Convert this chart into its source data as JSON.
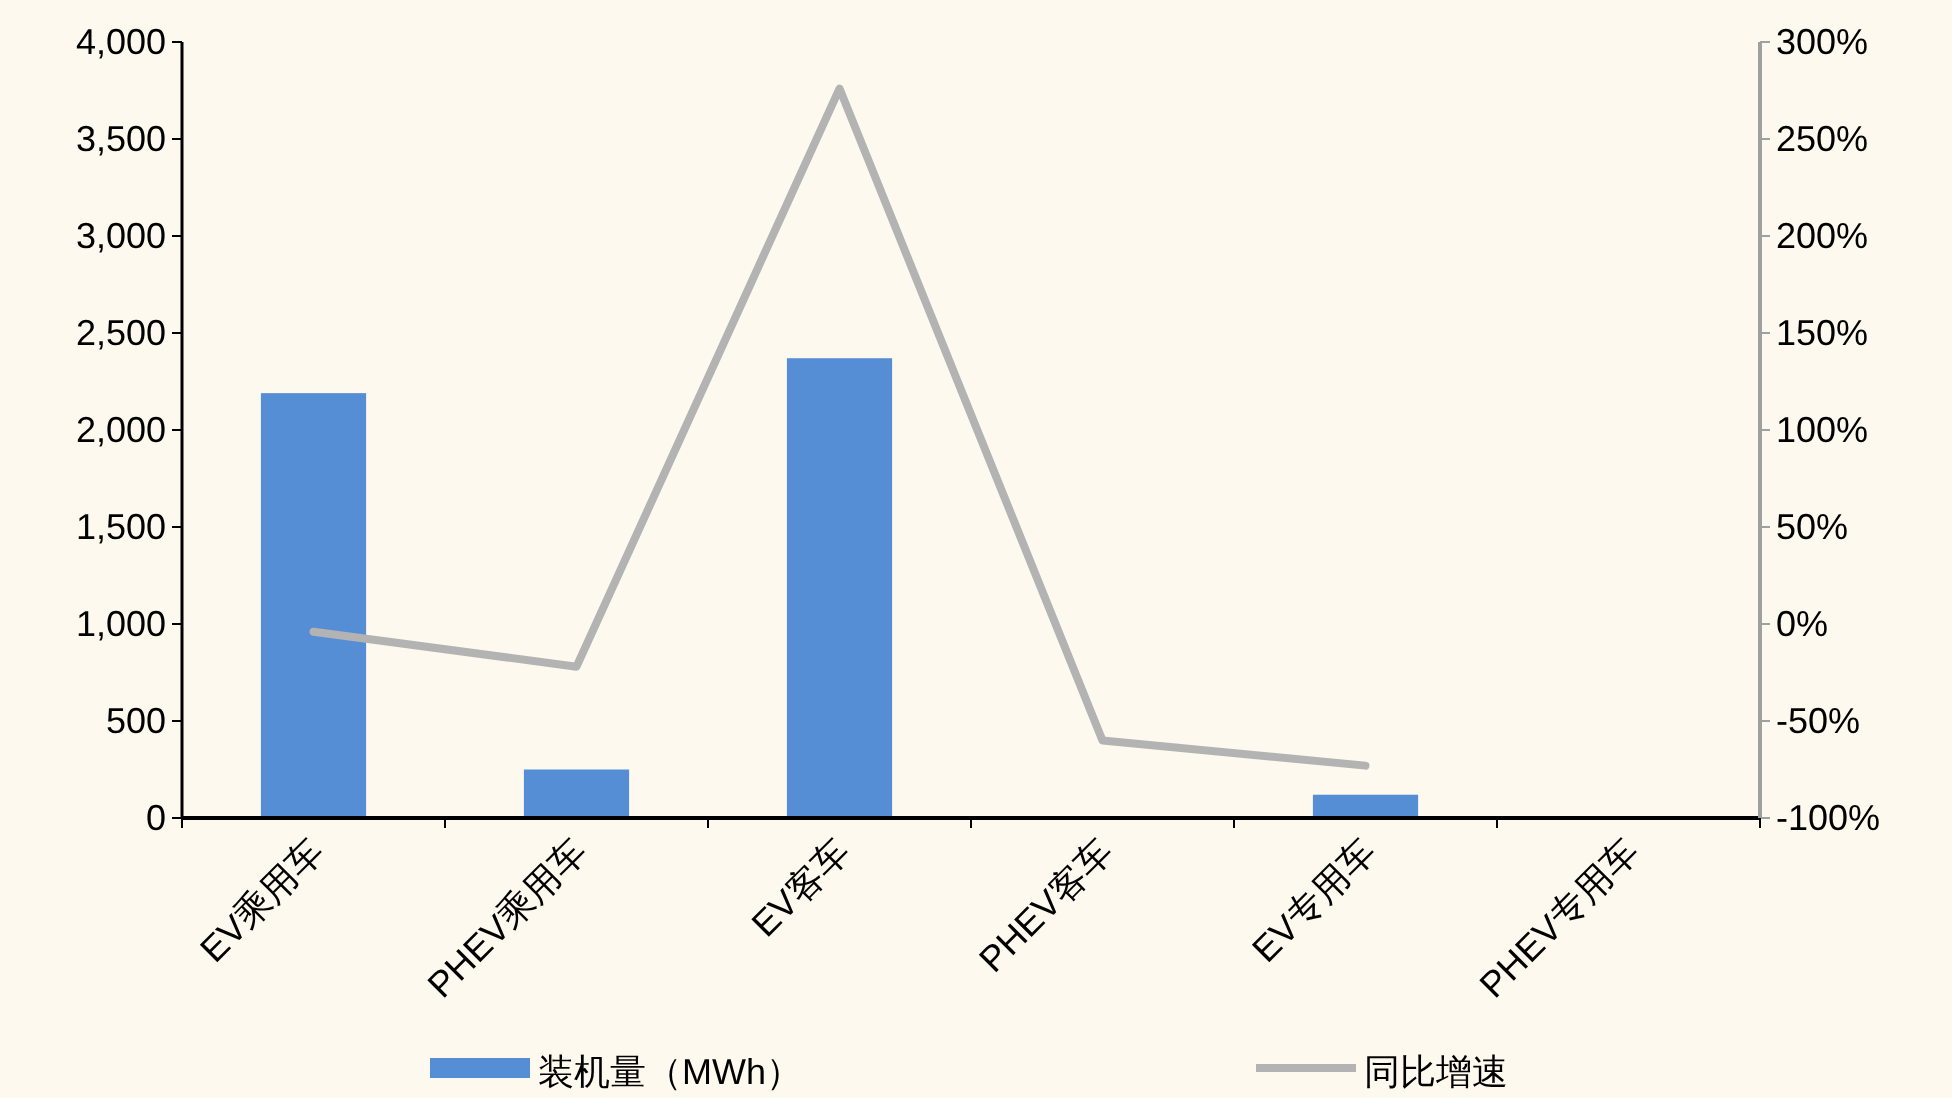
{
  "chart_data": {
    "type": "bar",
    "categories": [
      "EV乘用车",
      "PHEV乘用车",
      "EV客车",
      "PHEV客车",
      "EV专用车",
      "PHEV专用车"
    ],
    "series": [
      {
        "name": "装机量（MWh）",
        "color": "#558ed5",
        "values": [
          2190,
          250,
          2370,
          null,
          120,
          null
        ]
      },
      {
        "name": "同比增速",
        "type": "line",
        "axis": "y2",
        "color": "#b3b3b3",
        "values": [
          -4,
          -22,
          276,
          -60,
          -73,
          null
        ]
      }
    ],
    "ylim": [
      0,
      4000
    ],
    "yticks": [
      {
        "value": 0,
        "label": "0"
      },
      {
        "value": 500,
        "label": "500"
      },
      {
        "value": 1000,
        "label": "1,000"
      },
      {
        "value": 1500,
        "label": "1,500"
      },
      {
        "value": 2000,
        "label": "2,000"
      },
      {
        "value": 2500,
        "label": "2,500"
      },
      {
        "value": 3000,
        "label": "3,000"
      },
      {
        "value": 3500,
        "label": "3,500"
      },
      {
        "value": 4000,
        "label": "4,000"
      }
    ],
    "y2lim": [
      -100,
      300
    ],
    "y2ticks": [
      {
        "value": -100,
        "label": "-100%"
      },
      {
        "value": -50,
        "label": "-50%"
      },
      {
        "value": 0,
        "label": "0%"
      },
      {
        "value": 50,
        "label": "50%"
      },
      {
        "value": 100,
        "label": "100%"
      },
      {
        "value": 150,
        "label": "150%"
      },
      {
        "value": 200,
        "label": "200%"
      },
      {
        "value": 250,
        "label": "250%"
      },
      {
        "value": 300,
        "label": "300%"
      }
    ],
    "grid": false,
    "legend": "bottom"
  }
}
